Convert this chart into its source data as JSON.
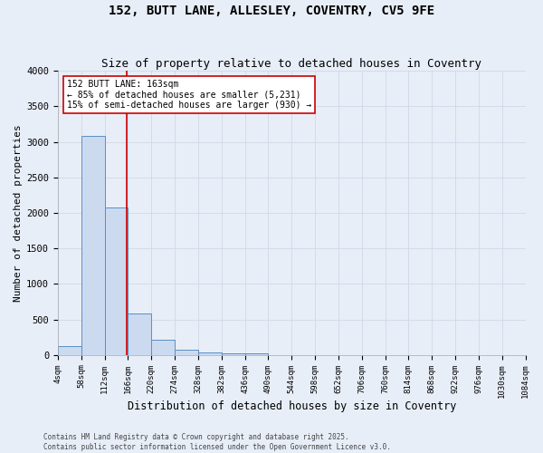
{
  "title1": "152, BUTT LANE, ALLESLEY, COVENTRY, CV5 9FE",
  "title2": "Size of property relative to detached houses in Coventry",
  "xlabel": "Distribution of detached houses by size in Coventry",
  "ylabel": "Number of detached properties",
  "bin_edges": [
    4,
    58,
    112,
    166,
    220,
    274,
    328,
    382,
    436,
    490,
    544,
    598,
    652,
    706,
    760,
    814,
    868,
    922,
    976,
    1030,
    1084
  ],
  "bar_heights": [
    130,
    3080,
    2080,
    580,
    210,
    70,
    40,
    30,
    20,
    0,
    0,
    0,
    0,
    0,
    0,
    0,
    0,
    0,
    0,
    0
  ],
  "bar_color": "#ccdaf0",
  "bar_edge_color": "#5a8fc3",
  "property_line_x": 163,
  "property_line_color": "#cc0000",
  "annotation_text": "152 BUTT LANE: 163sqm\n← 85% of detached houses are smaller (5,231)\n15% of semi-detached houses are larger (930) →",
  "annotation_box_color": "#cc0000",
  "annotation_text_color": "#000000",
  "ylim": [
    0,
    4000
  ],
  "background_color": "#e8eef8",
  "grid_color": "#d0d8e8",
  "footer_text": "Contains HM Land Registry data © Crown copyright and database right 2025.\nContains public sector information licensed under the Open Government Licence v3.0.",
  "title_fontsize": 10,
  "subtitle_fontsize": 9,
  "tick_label_fontsize": 6.5,
  "ylabel_fontsize": 8,
  "xlabel_fontsize": 8.5,
  "footer_fontsize": 5.5
}
